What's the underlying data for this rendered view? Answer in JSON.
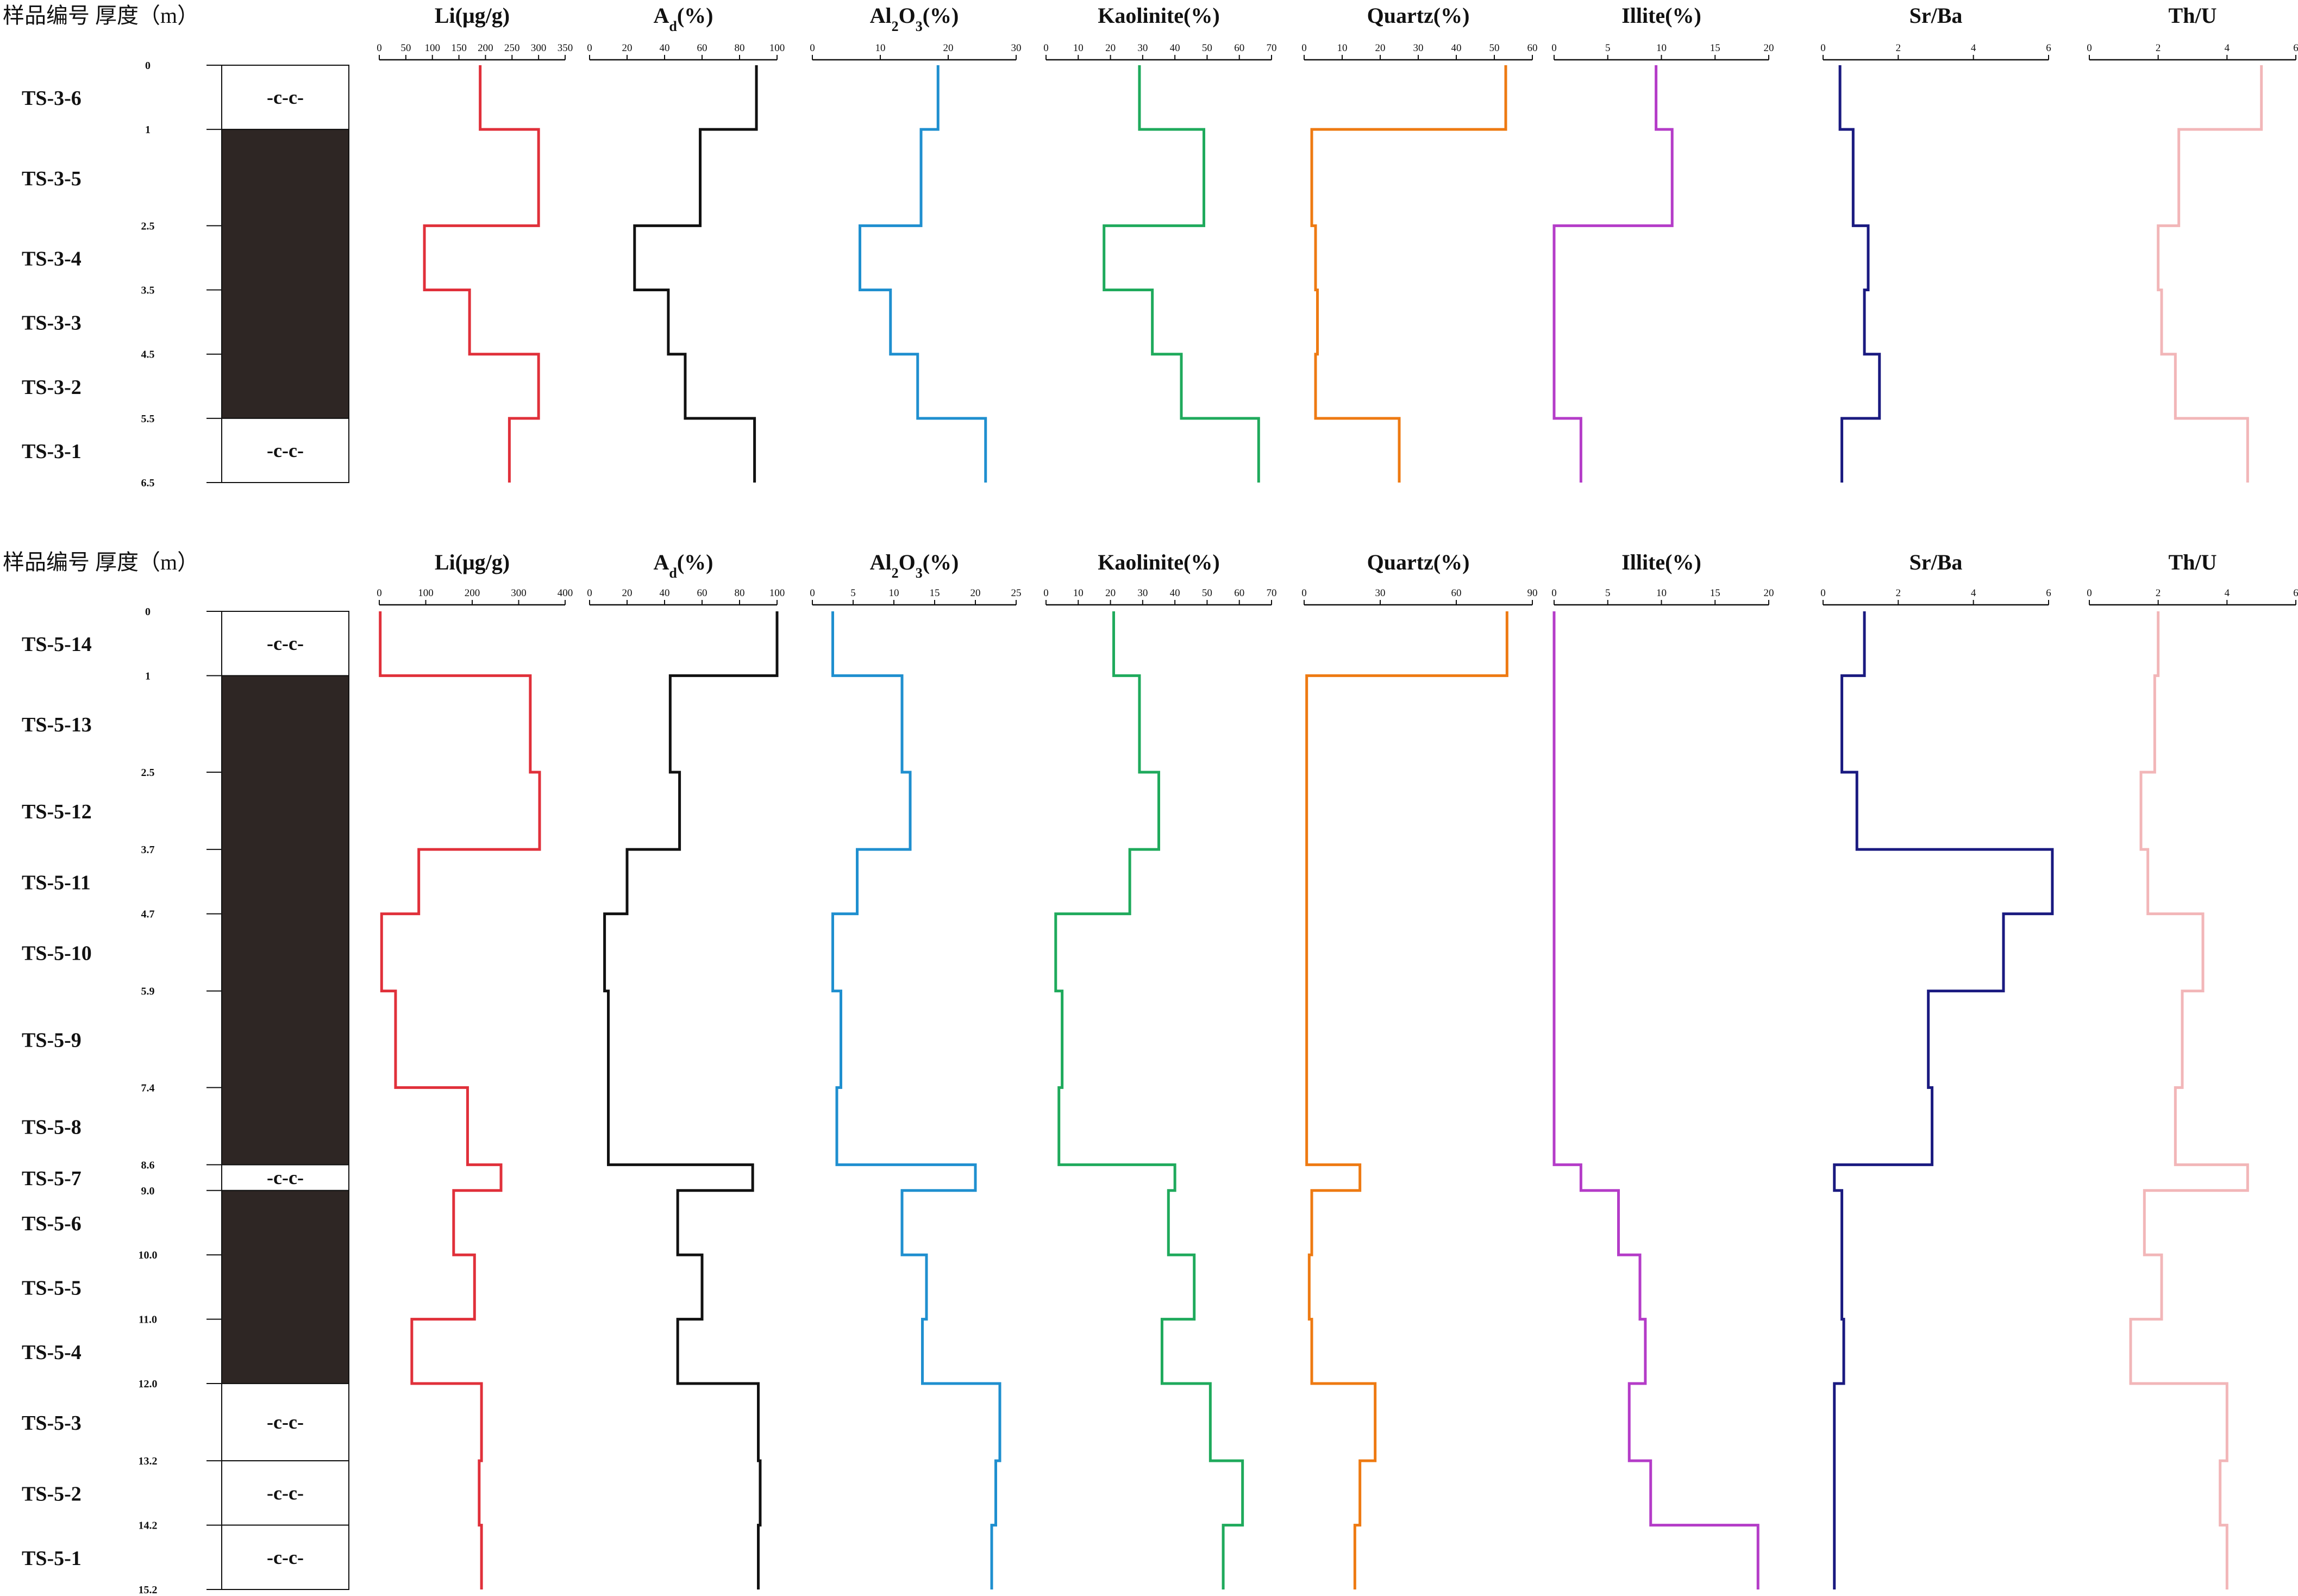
{
  "header_label": "样品编号 厚度（m）",
  "litho_symbol": "-c-c-",
  "colors": {
    "Li": "#e0303a",
    "Ad": "#111111",
    "Al2O3": "#1f8fcf",
    "Kaolinite": "#1faa5c",
    "Quartz": "#ee7a12",
    "Illite": "#b43cc8",
    "SrBa": "#1a1a80",
    "ThU": "#f2b6b8",
    "coal": "#2e2624"
  },
  "chart_data": [
    {
      "type": "line",
      "section": "TS-3",
      "depth_ticks": [
        "0",
        "1",
        "2.5",
        "3.5",
        "4.5",
        "5.5",
        "6.5"
      ],
      "samples": [
        {
          "id": "TS-3-6",
          "top": 0,
          "bottom": 1
        },
        {
          "id": "TS-3-5",
          "top": 1,
          "bottom": 2.5
        },
        {
          "id": "TS-3-4",
          "top": 2.5,
          "bottom": 3.5
        },
        {
          "id": "TS-3-3",
          "top": 3.5,
          "bottom": 4.5
        },
        {
          "id": "TS-3-2",
          "top": 4.5,
          "bottom": 5.5
        },
        {
          "id": "TS-3-1",
          "top": 5.5,
          "bottom": 6.5
        }
      ],
      "lithology": [
        {
          "top": 0,
          "bottom": 1,
          "kind": "rock",
          "label": "-c-c-"
        },
        {
          "top": 1,
          "bottom": 5.5,
          "kind": "coal"
        },
        {
          "top": 5.5,
          "bottom": 6.5,
          "kind": "rock",
          "label": "-c-c-"
        }
      ],
      "series": [
        {
          "key": "Li",
          "name": "Li(μg/g)",
          "ticks": [
            "0",
            "50",
            "100",
            "150",
            "200",
            "250",
            "300",
            "350"
          ],
          "range": [
            0,
            350
          ],
          "values": [
            190,
            300,
            85,
            170,
            300,
            245
          ]
        },
        {
          "key": "Ad",
          "name": "Ad(%)",
          "ticks": [
            "0",
            "20",
            "40",
            "60",
            "80",
            "100"
          ],
          "range": [
            0,
            100
          ],
          "values": [
            89,
            59,
            24,
            42,
            51,
            88
          ]
        },
        {
          "key": "Al2O3",
          "name": "Al2O3(%)",
          "ticks": [
            "0",
            "10",
            "20",
            "30"
          ],
          "range": [
            0,
            30
          ],
          "values": [
            18.5,
            16,
            7,
            11.5,
            15.5,
            25.5
          ]
        },
        {
          "key": "Kaolinite",
          "name": "Kaolinite(%)",
          "ticks": [
            "0",
            "10",
            "20",
            "30",
            "40",
            "50",
            "60",
            "70"
          ],
          "range": [
            0,
            70
          ],
          "values": [
            29,
            49,
            18,
            33,
            42,
            66
          ]
        },
        {
          "key": "Quartz",
          "name": "Quartz(%)",
          "ticks": [
            "0",
            "10",
            "20",
            "30",
            "40",
            "50",
            "60"
          ],
          "range": [
            0,
            60
          ],
          "values": [
            53,
            2,
            3,
            3.5,
            3,
            25
          ]
        },
        {
          "key": "Illite",
          "name": "Illite(%)",
          "ticks": [
            "0",
            "5",
            "10",
            "15",
            "20"
          ],
          "range": [
            0,
            20
          ],
          "values": [
            9.5,
            11,
            0,
            0,
            0,
            2.5
          ]
        },
        {
          "key": "SrBa",
          "name": "Sr/Ba",
          "ticks": [
            "0",
            "2",
            "4",
            "6"
          ],
          "range": [
            0,
            6
          ],
          "values": [
            0.45,
            0.8,
            1.2,
            1.1,
            1.5,
            0.5
          ]
        },
        {
          "key": "ThU",
          "name": "Th/U",
          "ticks": [
            "0",
            "2",
            "4",
            "6"
          ],
          "range": [
            0,
            6
          ],
          "values": [
            5.0,
            2.6,
            2.0,
            2.1,
            2.5,
            4.6
          ]
        }
      ]
    },
    {
      "type": "line",
      "section": "TS-5",
      "depth_ticks": [
        "0",
        "1",
        "2.5",
        "3.7",
        "4.7",
        "5.9",
        "7.4",
        "8.6",
        "9.0",
        "10.0",
        "11.0",
        "12.0",
        "13.2",
        "14.2",
        "15.2"
      ],
      "samples": [
        {
          "id": "TS-5-14",
          "top": 0,
          "bottom": 1
        },
        {
          "id": "TS-5-13",
          "top": 1,
          "bottom": 2.5
        },
        {
          "id": "TS-5-12",
          "top": 2.5,
          "bottom": 3.7
        },
        {
          "id": "TS-5-11",
          "top": 3.7,
          "bottom": 4.7
        },
        {
          "id": "TS-5-10",
          "top": 4.7,
          "bottom": 5.9
        },
        {
          "id": "TS-5-9",
          "top": 5.9,
          "bottom": 7.4
        },
        {
          "id": "TS-5-8",
          "top": 7.4,
          "bottom": 8.6
        },
        {
          "id": "TS-5-7",
          "top": 8.6,
          "bottom": 9.0
        },
        {
          "id": "TS-5-6",
          "top": 9.0,
          "bottom": 10.0
        },
        {
          "id": "TS-5-5",
          "top": 10.0,
          "bottom": 11.0
        },
        {
          "id": "TS-5-4",
          "top": 11.0,
          "bottom": 12.0
        },
        {
          "id": "TS-5-3",
          "top": 12.0,
          "bottom": 13.2
        },
        {
          "id": "TS-5-2",
          "top": 13.2,
          "bottom": 14.2
        },
        {
          "id": "TS-5-1",
          "top": 14.2,
          "bottom": 15.2
        }
      ],
      "lithology": [
        {
          "top": 0,
          "bottom": 1,
          "kind": "rock",
          "label": "-c-c-"
        },
        {
          "top": 1,
          "bottom": 8.6,
          "kind": "coal"
        },
        {
          "top": 8.6,
          "bottom": 9.0,
          "kind": "rock",
          "label": "-c-c-"
        },
        {
          "top": 9.0,
          "bottom": 12.0,
          "kind": "coal"
        },
        {
          "top": 12.0,
          "bottom": 13.2,
          "kind": "rock",
          "label": "-c-c-"
        },
        {
          "top": 13.2,
          "bottom": 14.2,
          "kind": "rock",
          "label": "-c-c-"
        },
        {
          "top": 14.2,
          "bottom": 15.2,
          "kind": "rock",
          "label": "-c-c-"
        }
      ],
      "series": [
        {
          "key": "Li",
          "name": "Li(μg/g)",
          "ticks": [
            "0",
            "100",
            "200",
            "300",
            "400"
          ],
          "range": [
            0,
            400
          ],
          "values": [
            2,
            325,
            345,
            85,
            5,
            35,
            190,
            262,
            160,
            205,
            70,
            220,
            215,
            220
          ]
        },
        {
          "key": "Ad",
          "name": "Ad(%)",
          "ticks": [
            "0",
            "20",
            "40",
            "60",
            "80",
            "100"
          ],
          "range": [
            0,
            100
          ],
          "values": [
            100,
            43,
            48,
            20,
            8,
            10,
            10,
            87,
            47,
            60,
            47,
            90,
            91,
            90
          ]
        },
        {
          "key": "Al2O3",
          "name": "Al2O3(%)",
          "ticks": [
            "0",
            "5",
            "10",
            "15",
            "20",
            "25"
          ],
          "range": [
            0,
            25
          ],
          "values": [
            2.5,
            11,
            12,
            5.5,
            2.5,
            3.5,
            3,
            20,
            11,
            14,
            13.5,
            23,
            22.5,
            22
          ]
        },
        {
          "key": "Kaolinite",
          "name": "Kaolinite(%)",
          "ticks": [
            "0",
            "10",
            "20",
            "30",
            "40",
            "50",
            "60",
            "70"
          ],
          "range": [
            0,
            70
          ],
          "values": [
            21,
            29,
            35,
            26,
            3,
            5,
            4,
            40,
            38,
            46,
            36,
            51,
            61,
            55
          ]
        },
        {
          "key": "Quartz",
          "name": "Quartz(%)",
          "ticks": [
            "0",
            "30",
            "60",
            "90"
          ],
          "range": [
            0,
            90
          ],
          "values": [
            80,
            1,
            1,
            1,
            1,
            1,
            1,
            22,
            3,
            2,
            3,
            28,
            22,
            20
          ]
        },
        {
          "key": "Illite",
          "name": "Illite(%)",
          "ticks": [
            "0",
            "5",
            "10",
            "15",
            "20"
          ],
          "range": [
            0,
            20
          ],
          "values": [
            0,
            0,
            0,
            0,
            0,
            0,
            0,
            2.5,
            6,
            8,
            8.5,
            7,
            9,
            19
          ]
        },
        {
          "key": "SrBa",
          "name": "Sr/Ba",
          "ticks": [
            "0",
            "2",
            "4",
            "6"
          ],
          "range": [
            0,
            6
          ],
          "values": [
            1.1,
            0.5,
            0.9,
            6.1,
            4.8,
            2.8,
            2.9,
            0.3,
            0.5,
            0.5,
            0.55,
            0.3,
            0.3,
            0.3
          ]
        },
        {
          "key": "ThU",
          "name": "Th/U",
          "ticks": [
            "0",
            "2",
            "4",
            "6"
          ],
          "range": [
            0,
            6
          ],
          "values": [
            2.0,
            1.9,
            1.5,
            1.7,
            3.3,
            2.7,
            2.5,
            4.6,
            1.6,
            2.1,
            1.2,
            4.0,
            3.8,
            4.0
          ]
        }
      ]
    }
  ]
}
